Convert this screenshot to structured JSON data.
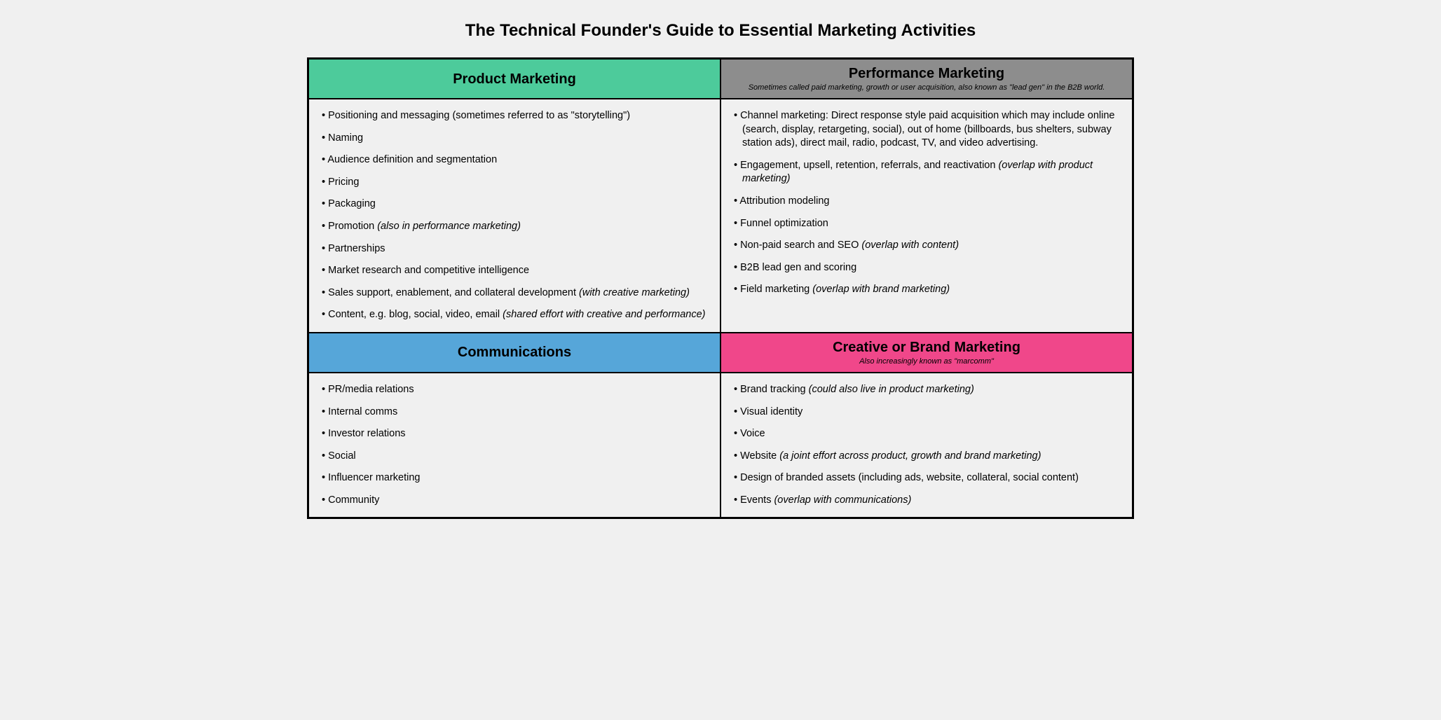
{
  "title": "The Technical Founder's Guide to Essential Marketing Activities",
  "layout": {
    "columns": 2,
    "rows": 2,
    "border_color": "#000000",
    "background_color": "#f0f0f0",
    "title_fontsize": 24,
    "header_fontsize": 20,
    "subtitle_fontsize": 11,
    "body_fontsize": 14.5
  },
  "quadrants": {
    "product_marketing": {
      "header_bg": "#4dcb9b",
      "title": "Product Marketing",
      "subtitle": "",
      "items": [
        {
          "text": "Positioning and messaging (sometimes referred to as \"storytelling\")"
        },
        {
          "text": "Naming"
        },
        {
          "text": "Audience definition and segmentation"
        },
        {
          "text": "Pricing"
        },
        {
          "text": "Packaging"
        },
        {
          "text": "Promotion",
          "italic_suffix": " (also in performance marketing)"
        },
        {
          "text": "Partnerships"
        },
        {
          "text": "Market research and competitive intelligence"
        },
        {
          "text": "Sales support, enablement, and collateral development",
          "italic_suffix": " (with creative marketing)"
        },
        {
          "text": "Content, e.g. blog, social, video, email",
          "italic_suffix": " (shared effort with creative and performance)"
        }
      ]
    },
    "performance_marketing": {
      "header_bg": "#8d8d8d",
      "title": "Performance Marketing",
      "subtitle": "Sometimes called paid marketing, growth or user acquisition, also known as \"lead gen\" in the B2B world.",
      "items": [
        {
          "text": "Channel marketing: Direct response style paid acquisition which may include online (search, display, retargeting, social), out of home (billboards, bus shelters, subway station ads), direct mail, radio, podcast, TV, and video advertising."
        },
        {
          "text": "Engagement, upsell, retention, referrals, and reactivation",
          "italic_suffix": " (overlap with product marketing)"
        },
        {
          "text": "Attribution modeling"
        },
        {
          "text": "Funnel optimization"
        },
        {
          "text": "Non-paid search and SEO",
          "italic_suffix": " (overlap with content)"
        },
        {
          "text": "B2B lead gen and scoring"
        },
        {
          "text": "Field marketing",
          "italic_suffix": " (overlap with brand marketing)"
        }
      ]
    },
    "communications": {
      "header_bg": "#56a6d9",
      "title": "Communications",
      "subtitle": "",
      "items": [
        {
          "text": "PR/media relations"
        },
        {
          "text": "Internal comms"
        },
        {
          "text": "Investor relations"
        },
        {
          "text": "Social"
        },
        {
          "text": "Influencer marketing"
        },
        {
          "text": "Community"
        }
      ]
    },
    "creative_brand": {
      "header_bg": "#f0478a",
      "title": "Creative or Brand Marketing",
      "subtitle": "Also increasingly known as \"marcomm\"",
      "items": [
        {
          "text": "Brand tracking",
          "italic_suffix": " (could also live in product marketing)"
        },
        {
          "text": "Visual identity"
        },
        {
          "text": "Voice"
        },
        {
          "text": "Website",
          "italic_suffix": " (a joint effort across product, growth and brand marketing)"
        },
        {
          "text": "Design of branded assets (including ads, website, collateral, social content)"
        },
        {
          "text": "Events",
          "italic_suffix": " (overlap with communications)"
        }
      ]
    }
  }
}
